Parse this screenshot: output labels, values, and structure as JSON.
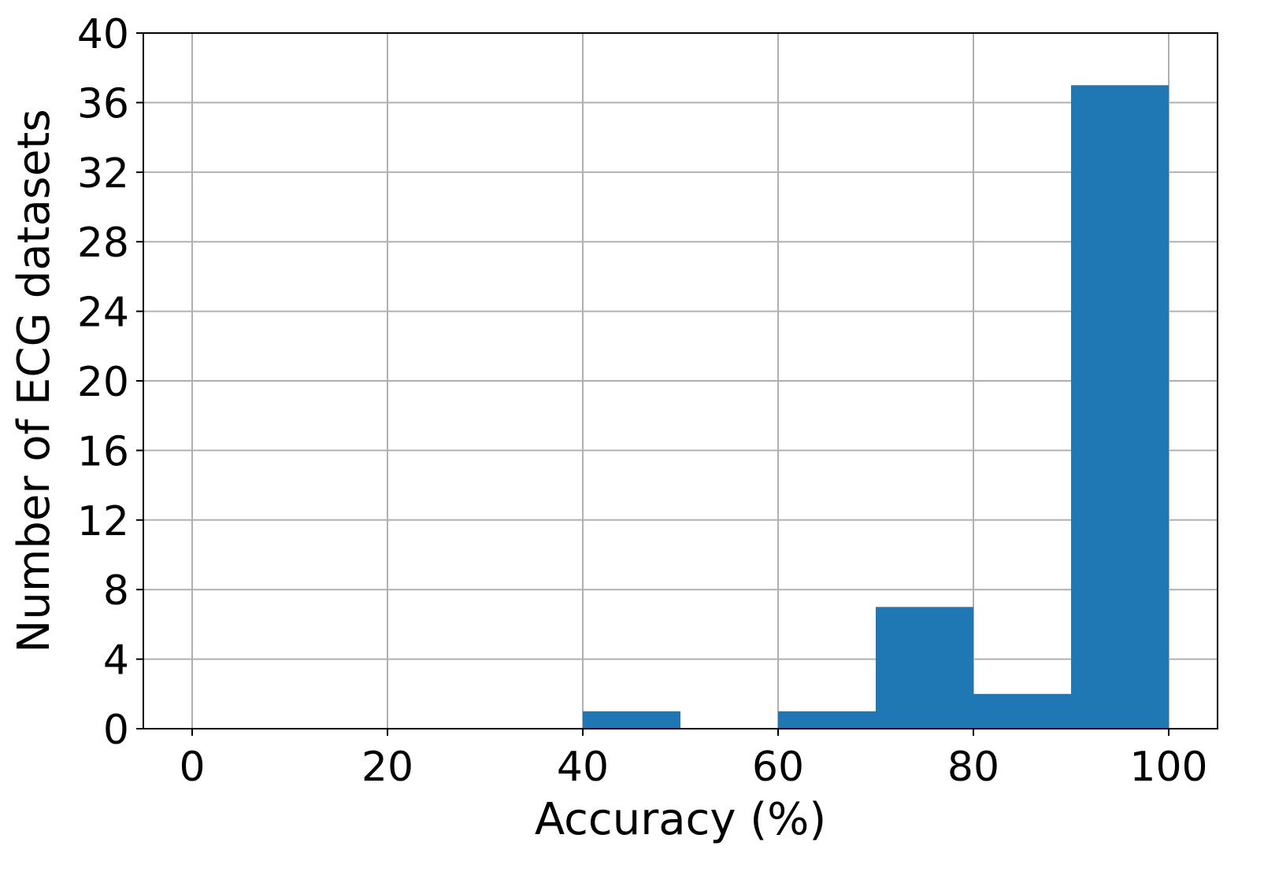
{
  "chart_data": {
    "type": "bar",
    "subtype": "histogram",
    "title": "",
    "xlabel": "Accuracy (%)",
    "ylabel": "Number of ECG datasets",
    "xlim": [
      -5,
      105
    ],
    "ylim": [
      0,
      40
    ],
    "x_ticks": [
      0,
      20,
      40,
      60,
      80,
      100
    ],
    "y_ticks": [
      0,
      4,
      8,
      12,
      16,
      20,
      24,
      28,
      32,
      36,
      40
    ],
    "bins": [
      {
        "x0": 40,
        "x1": 50,
        "value": 1
      },
      {
        "x0": 60,
        "x1": 70,
        "value": 1
      },
      {
        "x0": 70,
        "x1": 80,
        "value": 7
      },
      {
        "x0": 80,
        "x1": 90,
        "value": 2
      },
      {
        "x0": 90,
        "x1": 100,
        "value": 37
      }
    ],
    "grid": true,
    "bar_color": "#1f77b4",
    "grid_color": "#b0b0b0",
    "axis_color": "#000000"
  }
}
